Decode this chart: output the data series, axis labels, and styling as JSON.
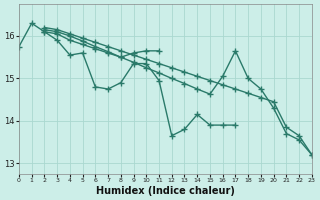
{
  "xlabel": "Humidex (Indice chaleur)",
  "bg_color": "#cceee8",
  "grid_color": "#aad8d0",
  "line_color": "#2a7a6a",
  "linewidth": 1.0,
  "marker": "+",
  "markersize": 4,
  "markeredgewidth": 1.0,
  "xlim": [
    0,
    23
  ],
  "ylim": [
    12.75,
    16.75
  ],
  "yticks": [
    13,
    14,
    15,
    16
  ],
  "xticks": [
    0,
    1,
    2,
    3,
    4,
    5,
    6,
    7,
    8,
    9,
    10,
    11,
    12,
    13,
    14,
    15,
    16,
    17,
    18,
    19,
    20,
    21,
    22,
    23
  ],
  "lines": [
    [
      15.75,
      16.3,
      16.1,
      15.9,
      15.55,
      15.6,
      14.8,
      14.75,
      14.9,
      15.35,
      15.35,
      14.95,
      13.65,
      13.8,
      14.15,
      13.9,
      13.9,
      13.9,
      null,
      null,
      null,
      null,
      null,
      null
    ],
    [
      null,
      null,
      16.1,
      16.05,
      15.9,
      15.8,
      15.7,
      15.6,
      15.5,
      15.6,
      15.65,
      15.65,
      null,
      null,
      null,
      null,
      null,
      null,
      null,
      null,
      null,
      null,
      null,
      null
    ],
    [
      null,
      null,
      16.15,
      16.1,
      16.0,
      15.88,
      15.75,
      15.63,
      15.5,
      15.38,
      15.25,
      15.13,
      15.0,
      14.88,
      14.75,
      14.63,
      15.05,
      15.65,
      15.0,
      14.75,
      14.3,
      13.7,
      13.55,
      13.2
    ],
    [
      null,
      null,
      16.2,
      16.15,
      16.05,
      15.95,
      15.85,
      15.75,
      15.65,
      15.55,
      15.45,
      15.35,
      15.25,
      15.15,
      15.05,
      14.95,
      14.85,
      14.75,
      14.65,
      14.55,
      14.45,
      13.85,
      13.65,
      13.2
    ]
  ]
}
